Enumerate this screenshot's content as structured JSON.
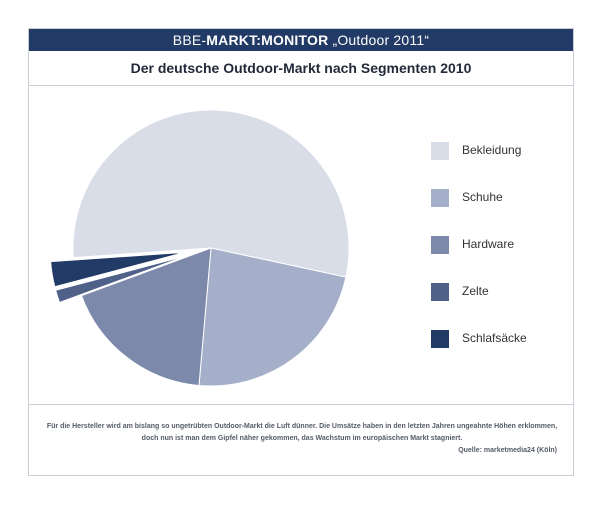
{
  "header": {
    "brand_prefix": "BBE-",
    "brand_main": "MARKT:MONITOR",
    "brand_suffix": " „Outdoor 2011“"
  },
  "title": "Der deutsche Outdoor-Markt nach Segmenten 2010",
  "chart_data": {
    "type": "pie",
    "title": "Der deutsche Outdoor-Markt nach Segmenten 2010",
    "legend_position": "right",
    "slices": [
      {
        "label": "Bekleidung",
        "value": 54.5,
        "color": "#d8dde8",
        "exploded": false
      },
      {
        "label": "Schuhe",
        "value": 23.0,
        "color": "#a6afc9",
        "exploded": false
      },
      {
        "label": "Hardware",
        "value": 18.0,
        "color": "#7c89ab",
        "exploded": false
      },
      {
        "label": "Zelte",
        "value": 1.5,
        "color": "#4f6089",
        "exploded": true
      },
      {
        "label": "Schlafsäcke",
        "value": 3.0,
        "color": "#223a66",
        "exploded": true
      }
    ]
  },
  "footer": {
    "note": "Für die Hersteller wird am bislang so ungetrübten Outdoor-Markt die Luft dünner. Die Umsätze haben in den letzten Jahren ungeahnte Höhen erklommen, doch nun ist man dem Gipfel näher gekommen, das Wachstum im europäischen Markt stagniert.",
    "source": "Quelle: marketmedia24 (Köln)"
  }
}
